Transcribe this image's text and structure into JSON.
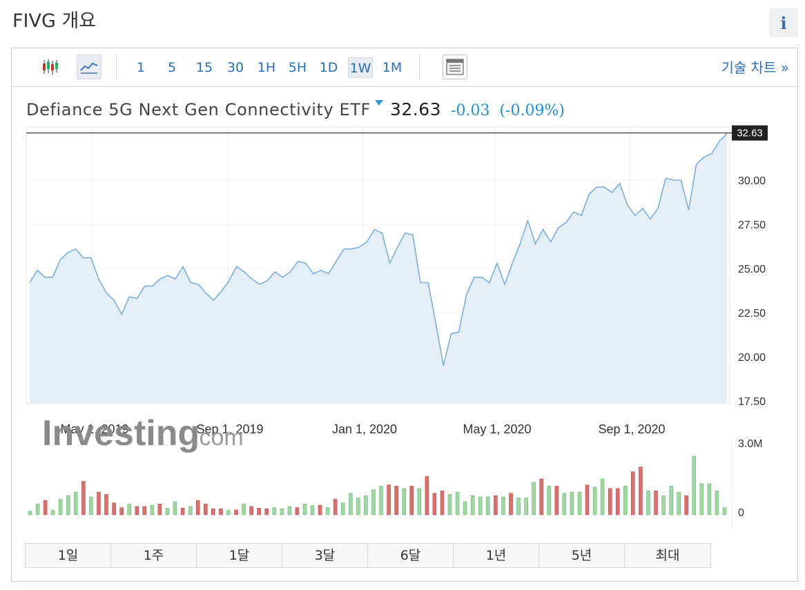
{
  "page": {
    "title": "FIVG 개요",
    "info_icon": "info-icon"
  },
  "toolbar": {
    "candlestick_icon": "candlestick-chart-icon",
    "line_icon": "line-chart-icon",
    "timeframes": [
      "1",
      "5",
      "15",
      "30",
      "1H",
      "5H",
      "1D",
      "1W",
      "1M"
    ],
    "active_timeframe": "1W",
    "layout_icon": "chart-layout-icon",
    "tech_link": "기술 차트 »"
  },
  "quote": {
    "name": "Defiance 5G Next Gen Connectivity ETF",
    "price": "32.63",
    "change": "-0.03",
    "change_pct": "(-0.09%)",
    "change_color": "#1f8fd6"
  },
  "chart_data": {
    "type": "area",
    "x_tick_labels": [
      "May 1, 2019",
      "Sep 1, 2019",
      "Jan 1, 2020",
      "May 1, 2020",
      "Sep 1, 2020"
    ],
    "y_tick_labels": [
      "30.00",
      "27.50",
      "25.00",
      "22.50",
      "20.00",
      "17.50"
    ],
    "y_ticks": [
      30,
      27.5,
      25,
      22.5,
      20,
      17.5
    ],
    "ylim": [
      17.5,
      33.3
    ],
    "last_price_label": "32.63",
    "last_price": 32.63,
    "line_color": "#7aaedb",
    "fill_color": "#e6eef5",
    "watermark": "Investing.com",
    "price_series": [
      24.2,
      24.9,
      24.5,
      24.5,
      25.5,
      25.9,
      26.1,
      25.6,
      25.6,
      24.4,
      23.6,
      23.2,
      22.4,
      23.4,
      23.3,
      24.0,
      24.0,
      24.4,
      24.6,
      24.4,
      25.1,
      24.2,
      24.1,
      23.6,
      23.2,
      23.7,
      24.3,
      25.1,
      24.8,
      24.4,
      24.1,
      24.3,
      24.8,
      24.5,
      24.8,
      25.4,
      25.3,
      24.7,
      24.9,
      24.7,
      25.4,
      26.1,
      26.1,
      26.2,
      26.5,
      27.2,
      27.0,
      25.3,
      26.2,
      27.0,
      26.9,
      24.2,
      24.2,
      21.9,
      19.5,
      21.3,
      21.4,
      23.5,
      24.5,
      24.5,
      24.2,
      25.3,
      24.1,
      25.3,
      26.4,
      27.7,
      26.4,
      27.2,
      26.5,
      27.3,
      27.6,
      28.2,
      28.0,
      29.2,
      29.6,
      29.6,
      29.3,
      29.8,
      28.6,
      28.0,
      28.4,
      27.8,
      28.4,
      30.1,
      30.0,
      30.0,
      28.3,
      30.9,
      31.3,
      31.5,
      32.2,
      32.63
    ],
    "volume": {
      "ylabel_top": "3.0M",
      "ylabel_bottom": "0",
      "max": 3.0,
      "unit": "M",
      "up_color": "#9fd6a1",
      "down_color": "#d9706e",
      "bars": [
        {
          "v": 0.15,
          "d": "up"
        },
        {
          "v": 0.45,
          "d": "up"
        },
        {
          "v": 0.6,
          "d": "down"
        },
        {
          "v": 0.2,
          "d": "up"
        },
        {
          "v": 0.65,
          "d": "up"
        },
        {
          "v": 0.8,
          "d": "up"
        },
        {
          "v": 0.95,
          "d": "up"
        },
        {
          "v": 1.4,
          "d": "down"
        },
        {
          "v": 0.75,
          "d": "up"
        },
        {
          "v": 0.95,
          "d": "down"
        },
        {
          "v": 0.85,
          "d": "down"
        },
        {
          "v": 0.5,
          "d": "down"
        },
        {
          "v": 0.3,
          "d": "down"
        },
        {
          "v": 0.45,
          "d": "up"
        },
        {
          "v": 0.35,
          "d": "down"
        },
        {
          "v": 0.35,
          "d": "down"
        },
        {
          "v": 0.4,
          "d": "up"
        },
        {
          "v": 0.45,
          "d": "down"
        },
        {
          "v": 0.28,
          "d": "up"
        },
        {
          "v": 0.55,
          "d": "up"
        },
        {
          "v": 0.28,
          "d": "down"
        },
        {
          "v": 0.35,
          "d": "up"
        },
        {
          "v": 0.6,
          "d": "down"
        },
        {
          "v": 0.45,
          "d": "down"
        },
        {
          "v": 0.25,
          "d": "down"
        },
        {
          "v": 0.25,
          "d": "down"
        },
        {
          "v": 0.2,
          "d": "up"
        },
        {
          "v": 0.2,
          "d": "down"
        },
        {
          "v": 0.45,
          "d": "up"
        },
        {
          "v": 0.35,
          "d": "down"
        },
        {
          "v": 0.28,
          "d": "down"
        },
        {
          "v": 0.25,
          "d": "down"
        },
        {
          "v": 0.3,
          "d": "up"
        },
        {
          "v": 0.25,
          "d": "up"
        },
        {
          "v": 0.35,
          "d": "up"
        },
        {
          "v": 0.3,
          "d": "down"
        },
        {
          "v": 0.45,
          "d": "up"
        },
        {
          "v": 0.38,
          "d": "up"
        },
        {
          "v": 0.4,
          "d": "down"
        },
        {
          "v": 0.3,
          "d": "up"
        },
        {
          "v": 0.65,
          "d": "down"
        },
        {
          "v": 0.5,
          "d": "up"
        },
        {
          "v": 0.9,
          "d": "up"
        },
        {
          "v": 0.7,
          "d": "up"
        },
        {
          "v": 0.8,
          "d": "up"
        },
        {
          "v": 1.05,
          "d": "up"
        },
        {
          "v": 1.2,
          "d": "up"
        },
        {
          "v": 1.25,
          "d": "down"
        },
        {
          "v": 1.2,
          "d": "down"
        },
        {
          "v": 1.1,
          "d": "up"
        },
        {
          "v": 1.2,
          "d": "down"
        },
        {
          "v": 1.1,
          "d": "up"
        },
        {
          "v": 1.6,
          "d": "down"
        },
        {
          "v": 0.9,
          "d": "down"
        },
        {
          "v": 1.0,
          "d": "down"
        },
        {
          "v": 0.85,
          "d": "up"
        },
        {
          "v": 0.95,
          "d": "up"
        },
        {
          "v": 0.55,
          "d": "up"
        },
        {
          "v": 0.8,
          "d": "up"
        },
        {
          "v": 0.75,
          "d": "up"
        },
        {
          "v": 0.75,
          "d": "up"
        },
        {
          "v": 0.8,
          "d": "down"
        },
        {
          "v": 0.75,
          "d": "up"
        },
        {
          "v": 0.9,
          "d": "down"
        },
        {
          "v": 0.7,
          "d": "up"
        },
        {
          "v": 0.7,
          "d": "up"
        },
        {
          "v": 1.35,
          "d": "up"
        },
        {
          "v": 1.5,
          "d": "down"
        },
        {
          "v": 1.2,
          "d": "up"
        },
        {
          "v": 1.2,
          "d": "down"
        },
        {
          "v": 0.9,
          "d": "up"
        },
        {
          "v": 0.95,
          "d": "up"
        },
        {
          "v": 0.95,
          "d": "up"
        },
        {
          "v": 1.25,
          "d": "down"
        },
        {
          "v": 1.15,
          "d": "up"
        },
        {
          "v": 1.5,
          "d": "up"
        },
        {
          "v": 1.1,
          "d": "down"
        },
        {
          "v": 1.1,
          "d": "down"
        },
        {
          "v": 1.2,
          "d": "up"
        },
        {
          "v": 1.8,
          "d": "down"
        },
        {
          "v": 2.0,
          "d": "down"
        },
        {
          "v": 1.0,
          "d": "up"
        },
        {
          "v": 1.0,
          "d": "down"
        },
        {
          "v": 0.8,
          "d": "up"
        },
        {
          "v": 1.2,
          "d": "up"
        },
        {
          "v": 0.95,
          "d": "up"
        },
        {
          "v": 0.8,
          "d": "down"
        },
        {
          "v": 2.45,
          "d": "up"
        },
        {
          "v": 1.3,
          "d": "up"
        },
        {
          "v": 1.3,
          "d": "up"
        },
        {
          "v": 1.0,
          "d": "up"
        },
        {
          "v": 0.3,
          "d": "up"
        }
      ]
    }
  },
  "ranges": [
    "1일",
    "1주",
    "1달",
    "3달",
    "6달",
    "1년",
    "5년",
    "최대"
  ]
}
